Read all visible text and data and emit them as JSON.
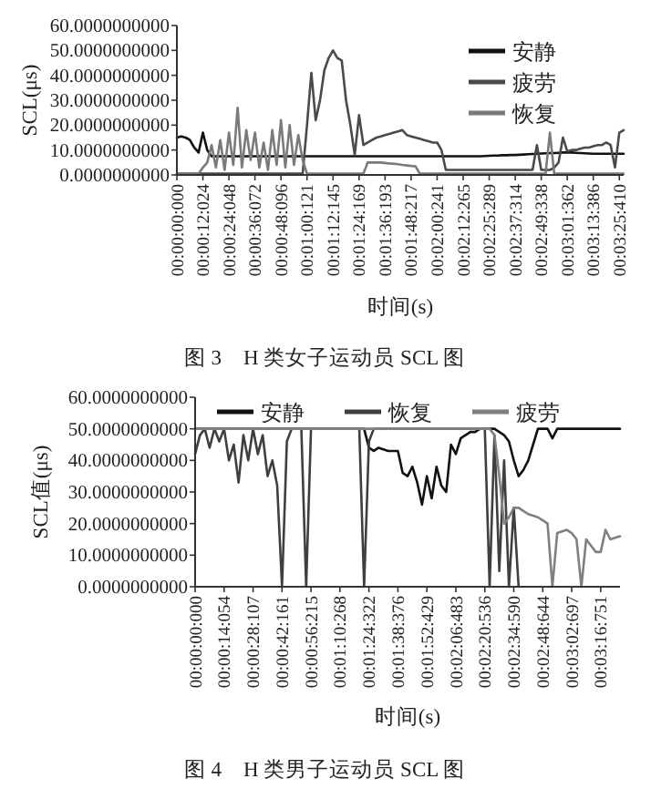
{
  "chart_data": [
    {
      "type": "line",
      "title": "图 3　H 类女子运动员 SCL 图",
      "xlabel": "时间(s)",
      "ylabel": "SCL(μs)",
      "legend": "top right",
      "ylim": [
        0,
        60
      ],
      "yticks": [
        {
          "value": 0,
          "label": "0.0000000000"
        },
        {
          "value": 10,
          "label": "10.0000000000"
        },
        {
          "value": 20,
          "label": "20.0000000000"
        },
        {
          "value": 30,
          "label": "30.0000000000"
        },
        {
          "value": 40,
          "label": "40.0000000000"
        },
        {
          "value": 50,
          "label": "50.0000000000"
        },
        {
          "value": 60,
          "label": "60.0000000000"
        }
      ],
      "categories": [
        "00:00:00:000",
        null,
        null,
        null,
        null,
        null,
        "00:00:12:024",
        null,
        null,
        null,
        null,
        null,
        "00:00:24:048",
        null,
        null,
        null,
        null,
        null,
        "00:00:36:072",
        null,
        null,
        null,
        null,
        null,
        "00:00:48:096",
        null,
        null,
        null,
        null,
        null,
        "00:01:00:121",
        null,
        null,
        null,
        null,
        null,
        "00:01:12:145",
        null,
        null,
        null,
        null,
        null,
        "00:01:24:169",
        null,
        null,
        null,
        null,
        null,
        "00:01:36:193",
        null,
        null,
        null,
        null,
        null,
        "00:01:48:217",
        null,
        null,
        null,
        null,
        null,
        "00:02:00:241",
        null,
        null,
        null,
        null,
        null,
        "00:02:12:265",
        null,
        null,
        null,
        null,
        null,
        "00:02:25:289",
        null,
        null,
        null,
        null,
        null,
        "00:02:37:314",
        null,
        null,
        null,
        null,
        null,
        "00:02:49:338",
        null,
        null,
        null,
        null,
        null,
        "00:03:01:362",
        null,
        null,
        null,
        null,
        null,
        "00:03:13:386",
        null,
        null,
        null,
        null,
        null,
        "00:03:25:410",
        null
      ],
      "series": [
        {
          "name": "安静",
          "color": "#111111",
          "values": [
            15,
            15.5,
            15,
            14,
            11,
            9,
            17,
            10,
            7.5,
            7.5,
            7.5,
            7.5,
            7.5,
            7.5,
            7.5,
            7.5,
            7.5,
            7.5,
            7.5,
            7.5,
            7.5,
            7.5,
            7.5,
            7.5,
            7.5,
            7.5,
            7.5,
            7.5,
            7.5,
            7.5,
            7.5,
            7.5,
            7.5,
            7.5,
            7.5,
            7.5,
            7.5,
            7.5,
            7.5,
            7.5,
            7.5,
            7.5,
            7.5,
            7.5,
            7.5,
            7.5,
            7.5,
            7.5,
            7.5,
            7.5,
            7.5,
            7.5,
            7.5,
            7.5,
            7.5,
            7.5,
            7.5,
            7.5,
            7.5,
            7.5,
            7.5,
            7.5,
            7.5,
            7.5,
            7.5,
            7.5,
            7.5,
            7.5,
            7.5,
            7.5,
            7.5,
            7.6,
            7.7,
            7.8,
            7.8,
            7.9,
            7.9,
            8,
            8,
            8.1,
            8.2,
            8.3,
            8.4,
            8.5,
            8.6,
            8.7,
            8.8,
            8.8,
            8.9,
            9,
            9,
            9,
            8.9,
            8.8,
            8.7,
            8.6,
            8.5,
            8.5,
            8.5,
            8.5,
            8.5,
            8.5,
            8.5,
            8.5
          ]
        },
        {
          "name": "疲劳",
          "color": "#4a4a4a",
          "values": [
            0.5,
            0.5,
            0.5,
            0.5,
            0.5,
            0.5,
            0.5,
            0.5,
            0.5,
            0.5,
            0.5,
            0.5,
            0.5,
            0.5,
            0.5,
            0.5,
            0.5,
            0.5,
            0.5,
            0.5,
            0.5,
            0.5,
            0.5,
            0.5,
            0.5,
            0.5,
            0.5,
            0.5,
            0.5,
            0.5,
            20,
            41,
            22,
            30,
            42,
            47,
            50,
            47,
            46,
            30,
            20,
            8,
            24,
            12,
            13,
            14,
            15,
            15.5,
            16,
            16.5,
            17,
            17.5,
            18,
            16,
            15.5,
            15,
            14.5,
            14,
            13.5,
            13,
            13,
            10,
            2,
            2,
            2,
            2,
            2,
            2,
            2,
            2,
            2,
            2,
            2,
            2,
            2,
            2,
            2,
            2,
            2,
            2,
            2,
            2,
            2,
            12,
            2,
            2,
            2,
            3,
            5,
            15,
            9.5,
            10,
            10,
            10.5,
            11,
            11,
            11.5,
            12,
            12,
            13,
            12,
            3,
            17,
            18
          ]
        },
        {
          "name": "恢复",
          "color": "#7a7a7a",
          "values": [
            0.5,
            0.5,
            0.5,
            0.5,
            0.5,
            0.5,
            3,
            5,
            12,
            3,
            14,
            2,
            17,
            4,
            27,
            3,
            18,
            6,
            17,
            3,
            13,
            2,
            18,
            4,
            22,
            3,
            20,
            4,
            16,
            6,
            0.5,
            0.5,
            0.5,
            0.5,
            0.5,
            0.5,
            0.5,
            0.5,
            0.5,
            0.5,
            0.5,
            0.5,
            0.5,
            0.5,
            5,
            5,
            5,
            5,
            4.8,
            4.6,
            4.5,
            4.3,
            4,
            3.8,
            3.6,
            3.5,
            0.5,
            0.5,
            0.5,
            0.5,
            0.5,
            0.5,
            0.5,
            0.5,
            0.5,
            0.5,
            0.5,
            0.5,
            0.5,
            0.5,
            0.5,
            0.5,
            0.5,
            0.5,
            0.5,
            0.5,
            0.5,
            0.5,
            0.5,
            0.5,
            0.5,
            0.5,
            0.5,
            0.5,
            0.5,
            0.5,
            17,
            0.5,
            0.5,
            0.5,
            0.5,
            0.5,
            0.5,
            0.5,
            0.5,
            0.5,
            0.5,
            0.5,
            0.5,
            0.5,
            0.5,
            0.5,
            0.5,
            0.5
          ]
        }
      ]
    },
    {
      "type": "line",
      "title": "图 4　H 类男子运动员 SCL 图",
      "xlabel": "时间(s)",
      "ylabel": "SCL值(μs)",
      "legend": "top",
      "ylim": [
        0,
        60
      ],
      "yticks": [
        {
          "value": 0,
          "label": "0.0000000000"
        },
        {
          "value": 10,
          "label": "10.0000000000"
        },
        {
          "value": 20,
          "label": "20.0000000000"
        },
        {
          "value": 30,
          "label": "30.0000000000"
        },
        {
          "value": 40,
          "label": "40.0000000000"
        },
        {
          "value": 50,
          "label": "50.0000000000"
        },
        {
          "value": 60,
          "label": "60.0000000000"
        }
      ],
      "categories": [
        "00:00:00:000",
        null,
        null,
        null,
        null,
        null,
        "00:00:14:054",
        null,
        null,
        null,
        null,
        null,
        "00:00:28:107",
        null,
        null,
        null,
        null,
        null,
        "00:00:42:161",
        null,
        null,
        null,
        null,
        null,
        "00:00:56:215",
        null,
        null,
        null,
        null,
        null,
        "00:01:10:268",
        null,
        null,
        null,
        null,
        null,
        "00:01:24:322",
        null,
        null,
        null,
        null,
        null,
        "00:01:38:376",
        null,
        null,
        null,
        null,
        null,
        "00:01:52:429",
        null,
        null,
        null,
        null,
        null,
        "00:02:06:483",
        null,
        null,
        null,
        null,
        null,
        "00:02:20:536",
        null,
        null,
        null,
        null,
        null,
        "00:02:34:590",
        null,
        null,
        null,
        null,
        null,
        "00:02:48:644",
        null,
        null,
        null,
        null,
        null,
        "00:03:02:697",
        null,
        null,
        null,
        null,
        null,
        "00:03:16:751",
        null,
        null,
        null,
        null
      ],
      "series": [
        {
          "name": "安静",
          "color": "#111111",
          "values": [
            50,
            50,
            50,
            50,
            50,
            50,
            50,
            50,
            50,
            50,
            50,
            50,
            50,
            50,
            50,
            50,
            50,
            50,
            50,
            50,
            50,
            50,
            50,
            50,
            50,
            50,
            50,
            50,
            50,
            50,
            50,
            50,
            50,
            50,
            50,
            50,
            44,
            43,
            44,
            43.5,
            43,
            43,
            43,
            36,
            35,
            38,
            33,
            26,
            35,
            28,
            38,
            32,
            30,
            45,
            42,
            47,
            48,
            49,
            49,
            50,
            50,
            50,
            50,
            49,
            48,
            46,
            40,
            35,
            37,
            40,
            45,
            50,
            50,
            50,
            47,
            50,
            50,
            50,
            50,
            50,
            50,
            50,
            50,
            50,
            50,
            50,
            50,
            50,
            50
          ]
        },
        {
          "name": "恢复",
          "color": "#3f3f3f",
          "values": [
            42,
            48,
            50,
            44,
            50,
            46,
            50,
            40,
            45,
            33,
            48,
            40,
            50,
            42,
            48,
            35,
            40,
            32,
            0,
            46,
            50,
            50,
            50,
            0,
            50,
            50,
            50,
            50,
            50,
            50,
            50,
            50,
            50,
            50,
            50,
            0,
            46,
            50,
            50,
            50,
            50,
            50,
            50,
            50,
            50,
            50,
            50,
            50,
            50,
            50,
            50,
            50,
            50,
            50,
            50,
            50,
            50,
            50,
            50,
            50,
            50,
            0,
            48,
            5,
            40,
            0,
            25,
            0,
            null,
            null,
            null,
            null,
            null,
            null,
            null,
            null,
            null,
            null,
            null,
            null,
            null,
            null,
            null,
            null,
            null,
            null,
            null,
            null,
            null
          ]
        },
        {
          "name": "疲劳",
          "color": "#808080",
          "values": [
            50,
            50,
            50,
            50,
            50,
            50,
            50,
            50,
            50,
            50,
            50,
            50,
            50,
            50,
            50,
            50,
            50,
            50,
            50,
            50,
            50,
            50,
            50,
            50,
            50,
            50,
            50,
            50,
            50,
            50,
            50,
            50,
            50,
            50,
            50,
            50,
            50,
            50,
            50,
            50,
            50,
            50,
            50,
            50,
            50,
            50,
            50,
            50,
            50,
            50,
            50,
            50,
            50,
            50,
            50,
            50,
            50,
            50,
            50,
            50,
            50,
            50,
            48,
            35,
            20,
            22,
            25,
            25,
            24,
            23,
            22.5,
            22,
            21,
            20,
            0,
            17,
            17.5,
            18,
            17,
            15,
            0,
            15,
            13,
            11,
            11,
            18,
            15,
            15.5,
            16
          ]
        }
      ]
    }
  ]
}
